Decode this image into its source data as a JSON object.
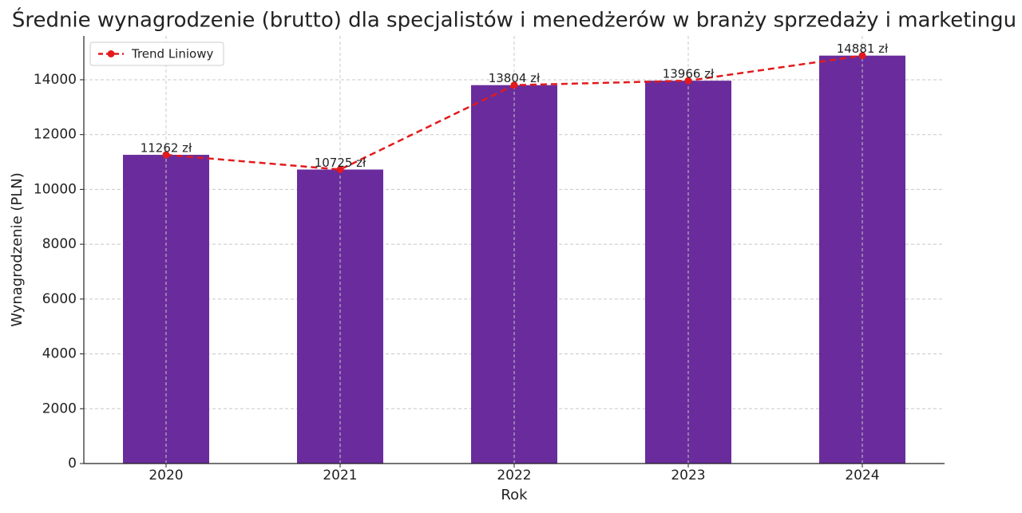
{
  "chart_data": {
    "type": "bar",
    "title": "Średnie wynagrodzenie (brutto) dla specjalistów i menedżerów w branży sprzedaży i marketingu",
    "x_label": "Rok",
    "y_label": "Wynagrodzenie (PLN)",
    "categories": [
      "2020",
      "2021",
      "2022",
      "2023",
      "2024"
    ],
    "values": [
      11262,
      10725,
      13804,
      13966,
      14881
    ],
    "value_labels": [
      "11262 zł",
      "10725 zł",
      "13804 zł",
      "13966 zł",
      "14881 zł"
    ],
    "color": "#6a2c9c",
    "trend": {
      "name": "Trend Liniowy",
      "color": "#e31a1c",
      "values": [
        11262,
        10725,
        13804,
        13966,
        14881
      ]
    },
    "ylim": [
      0,
      15600
    ],
    "yticks": [
      0,
      2000,
      4000,
      6000,
      8000,
      10000,
      12000,
      14000
    ],
    "grid": true,
    "legend": "upper-left"
  }
}
